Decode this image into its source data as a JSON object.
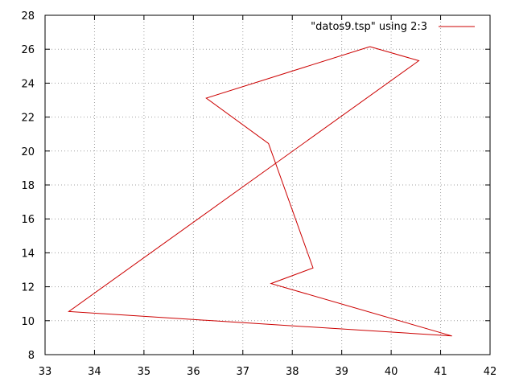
{
  "chart_data": {
    "type": "line",
    "xlim": [
      33,
      42
    ],
    "ylim": [
      8,
      28
    ],
    "x_ticks": [
      33,
      34,
      35,
      36,
      37,
      38,
      39,
      40,
      41,
      42
    ],
    "y_ticks": [
      8,
      10,
      12,
      14,
      16,
      18,
      20,
      22,
      24,
      26,
      28
    ],
    "grid": true,
    "legend_position": "top-right",
    "series": [
      {
        "name": "\"datos9.tsp\" using 2:3",
        "color": "#cc0000",
        "points": [
          [
            39.57,
            26.15
          ],
          [
            40.56,
            25.32
          ],
          [
            33.48,
            10.54
          ],
          [
            41.23,
            9.1
          ],
          [
            37.57,
            12.19
          ],
          [
            38.42,
            13.11
          ],
          [
            37.52,
            20.44
          ],
          [
            36.26,
            23.12
          ],
          [
            39.57,
            26.15
          ]
        ]
      }
    ]
  }
}
